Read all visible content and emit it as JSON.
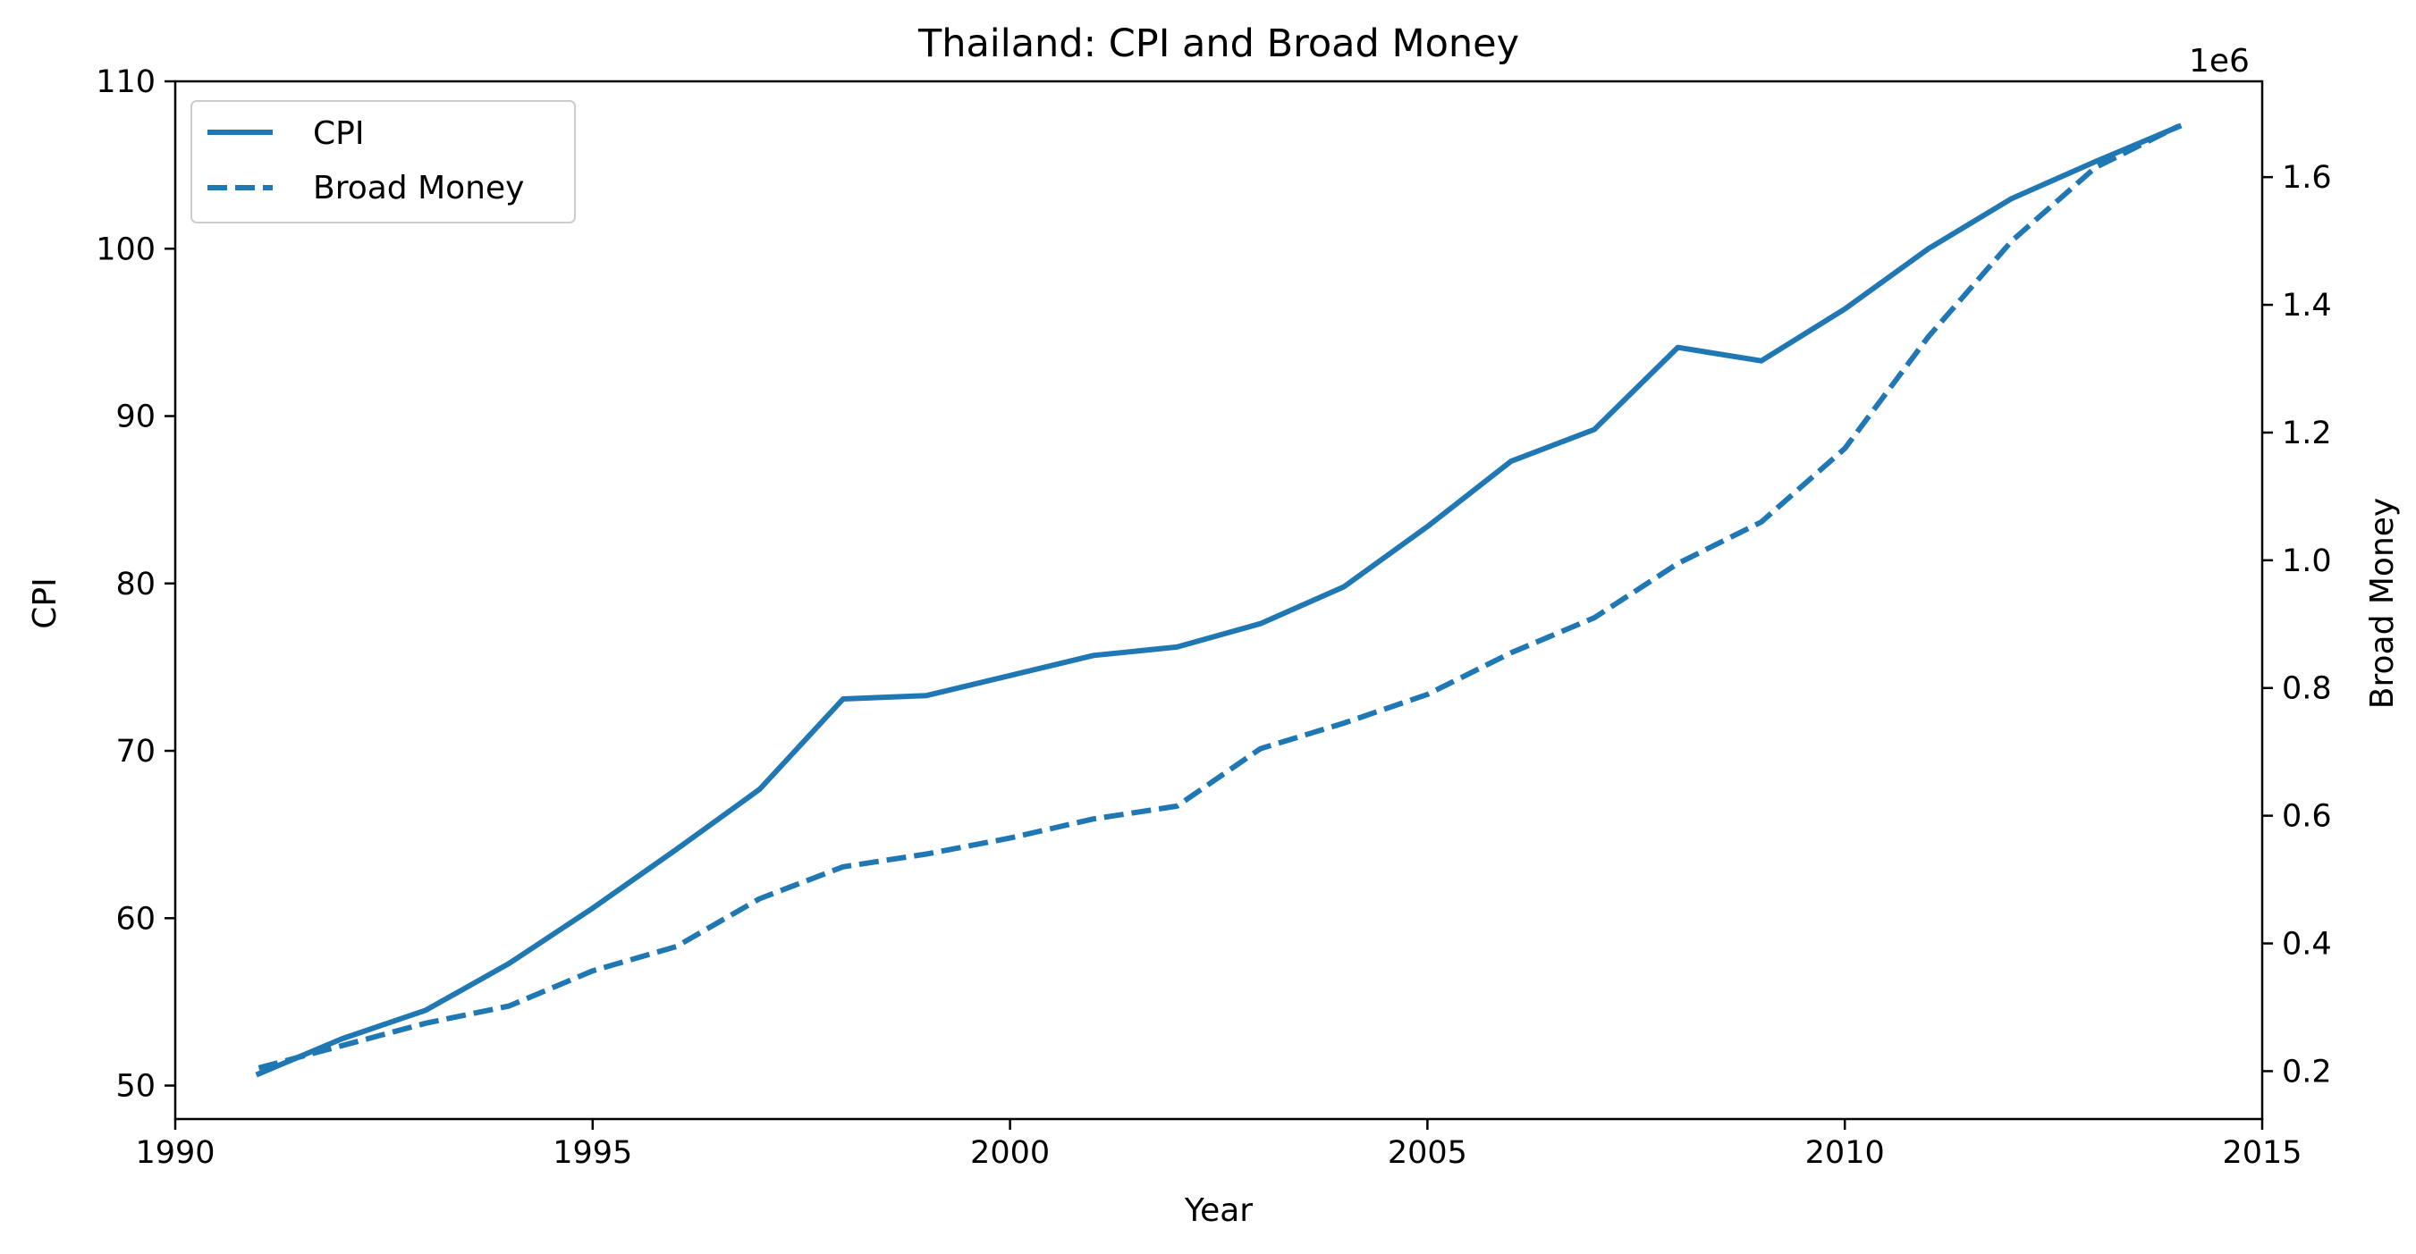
{
  "chart_data": {
    "type": "line",
    "title": "Thailand: CPI and Broad Money",
    "xlabel": "Year",
    "ylabel_left": "CPI",
    "ylabel_right": "Broad Money",
    "right_axis_offset_text": "1e6",
    "xlim": [
      1990,
      2015
    ],
    "ylim_left": [
      48,
      110
    ],
    "ylim_right": [
      0.125,
      1.75
    ],
    "x_ticks": [
      1990,
      1995,
      2000,
      2005,
      2010,
      2015
    ],
    "y_ticks_left": [
      50,
      60,
      70,
      80,
      90,
      100,
      110
    ],
    "y_ticks_right": [
      0.2,
      0.4,
      0.6,
      0.8,
      1.0,
      1.2,
      1.4,
      1.6
    ],
    "y_tick_labels_right": [
      "0.2",
      "0.4",
      "0.6",
      "0.8",
      "1.0",
      "1.2",
      "1.4",
      "1.6"
    ],
    "grid": false,
    "legend_position": "top-left",
    "color": "#1f77b4",
    "x": [
      1991,
      1992,
      1993,
      1994,
      1995,
      1996,
      1997,
      1998,
      1999,
      2000,
      2001,
      2002,
      2003,
      2004,
      2005,
      2006,
      2007,
      2008,
      2009,
      2010,
      2011,
      2012,
      2013,
      2014
    ],
    "series": [
      {
        "name": "CPI",
        "axis": "left",
        "line_style": "solid",
        "values": [
          50.7,
          52.8,
          54.5,
          57.3,
          60.6,
          64.1,
          67.7,
          73.1,
          73.3,
          74.5,
          75.7,
          76.2,
          77.6,
          79.8,
          83.4,
          87.3,
          89.2,
          94.1,
          93.3,
          96.4,
          100.0,
          103.0,
          105.2,
          107.3
        ]
      },
      {
        "name": "Broad Money",
        "axis": "right",
        "line_style": "dashed",
        "values": [
          0.205,
          0.24,
          0.275,
          0.302,
          0.357,
          0.395,
          0.47,
          0.52,
          0.54,
          0.565,
          0.595,
          0.615,
          0.705,
          0.745,
          0.79,
          0.855,
          0.91,
          0.995,
          1.06,
          1.175,
          1.35,
          1.5,
          1.615,
          1.68
        ]
      }
    ]
  }
}
